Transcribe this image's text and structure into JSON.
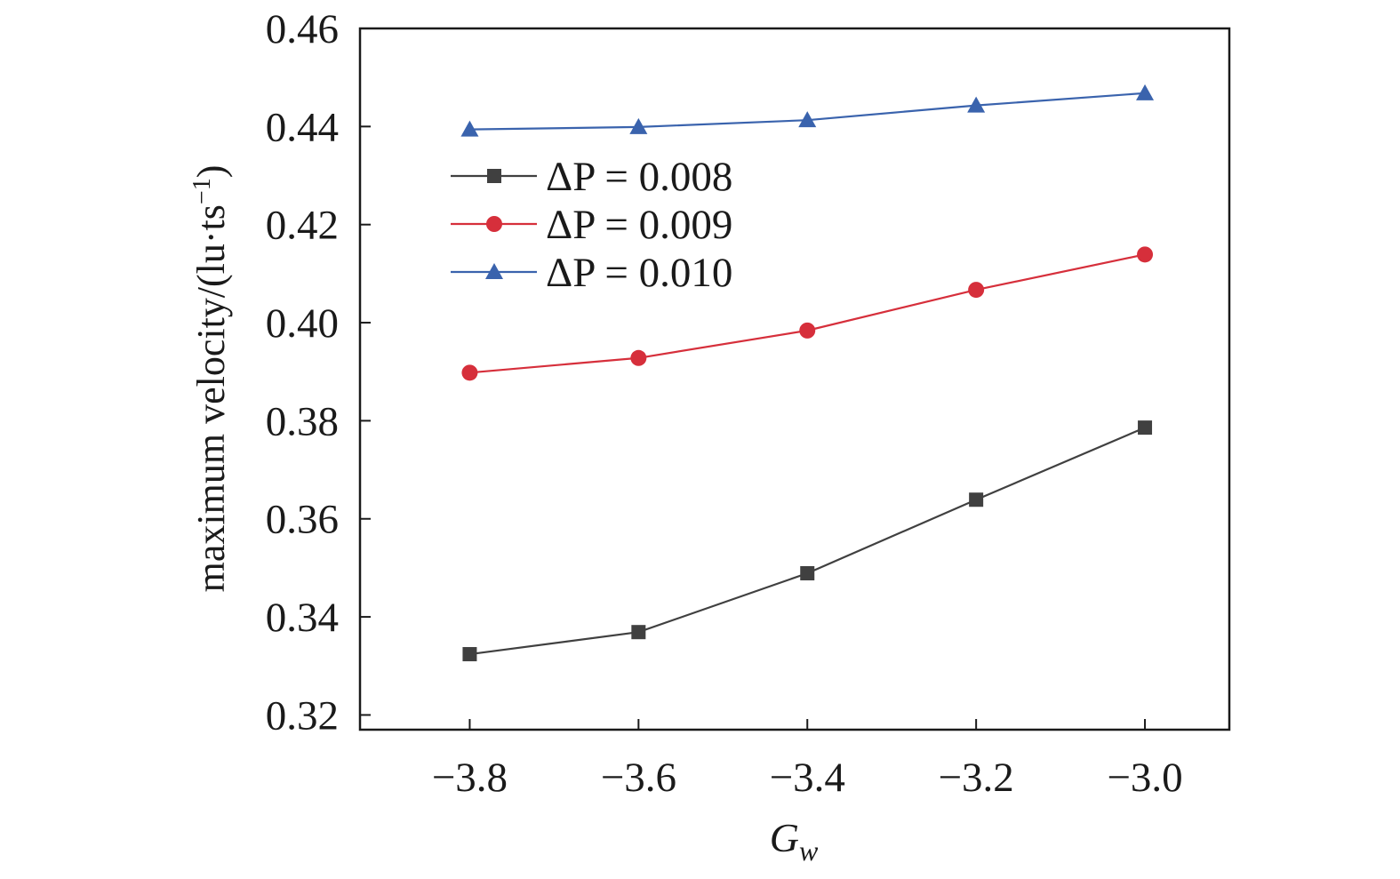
{
  "chart_data": {
    "type": "line",
    "title": "",
    "xlabel": "G",
    "xlabel_sub": "w",
    "ylabel": "maximum velocity/(lu·ts",
    "ylabel_sup": "−1",
    "ylabel_close": ")",
    "xlim": [
      -3.93,
      -2.9
    ],
    "ylim": [
      0.317,
      0.46
    ],
    "x": [
      -3.8,
      -3.6,
      -3.4,
      -3.2,
      -3.0
    ],
    "x_ticks": [
      -3.8,
      -3.6,
      -3.4,
      -3.2,
      -3.0
    ],
    "x_tick_labels": [
      "−3.8",
      "−3.6",
      "−3.4",
      "−3.2",
      "−3.0"
    ],
    "y_ticks": [
      0.32,
      0.34,
      0.36,
      0.38,
      0.4,
      0.42,
      0.44,
      0.46
    ],
    "y_tick_labels": [
      "0.32",
      "0.34",
      "0.36",
      "0.38",
      "0.40",
      "0.42",
      "0.44",
      "0.46"
    ],
    "grid": false,
    "legend_position": "upper-left",
    "series": [
      {
        "name": "ΔP = 0.008",
        "values": [
          0.3324,
          0.3369,
          0.3489,
          0.3639,
          0.3786
        ],
        "color": "#404040",
        "marker": "square"
      },
      {
        "name": "ΔP = 0.009",
        "values": [
          0.3898,
          0.3928,
          0.3984,
          0.4067,
          0.4139
        ],
        "color": "#d62f3b",
        "marker": "circle"
      },
      {
        "name": "ΔP = 0.010",
        "values": [
          0.4394,
          0.4399,
          0.4413,
          0.4443,
          0.4468
        ],
        "color": "#3a63ad",
        "marker": "triangle"
      }
    ]
  }
}
